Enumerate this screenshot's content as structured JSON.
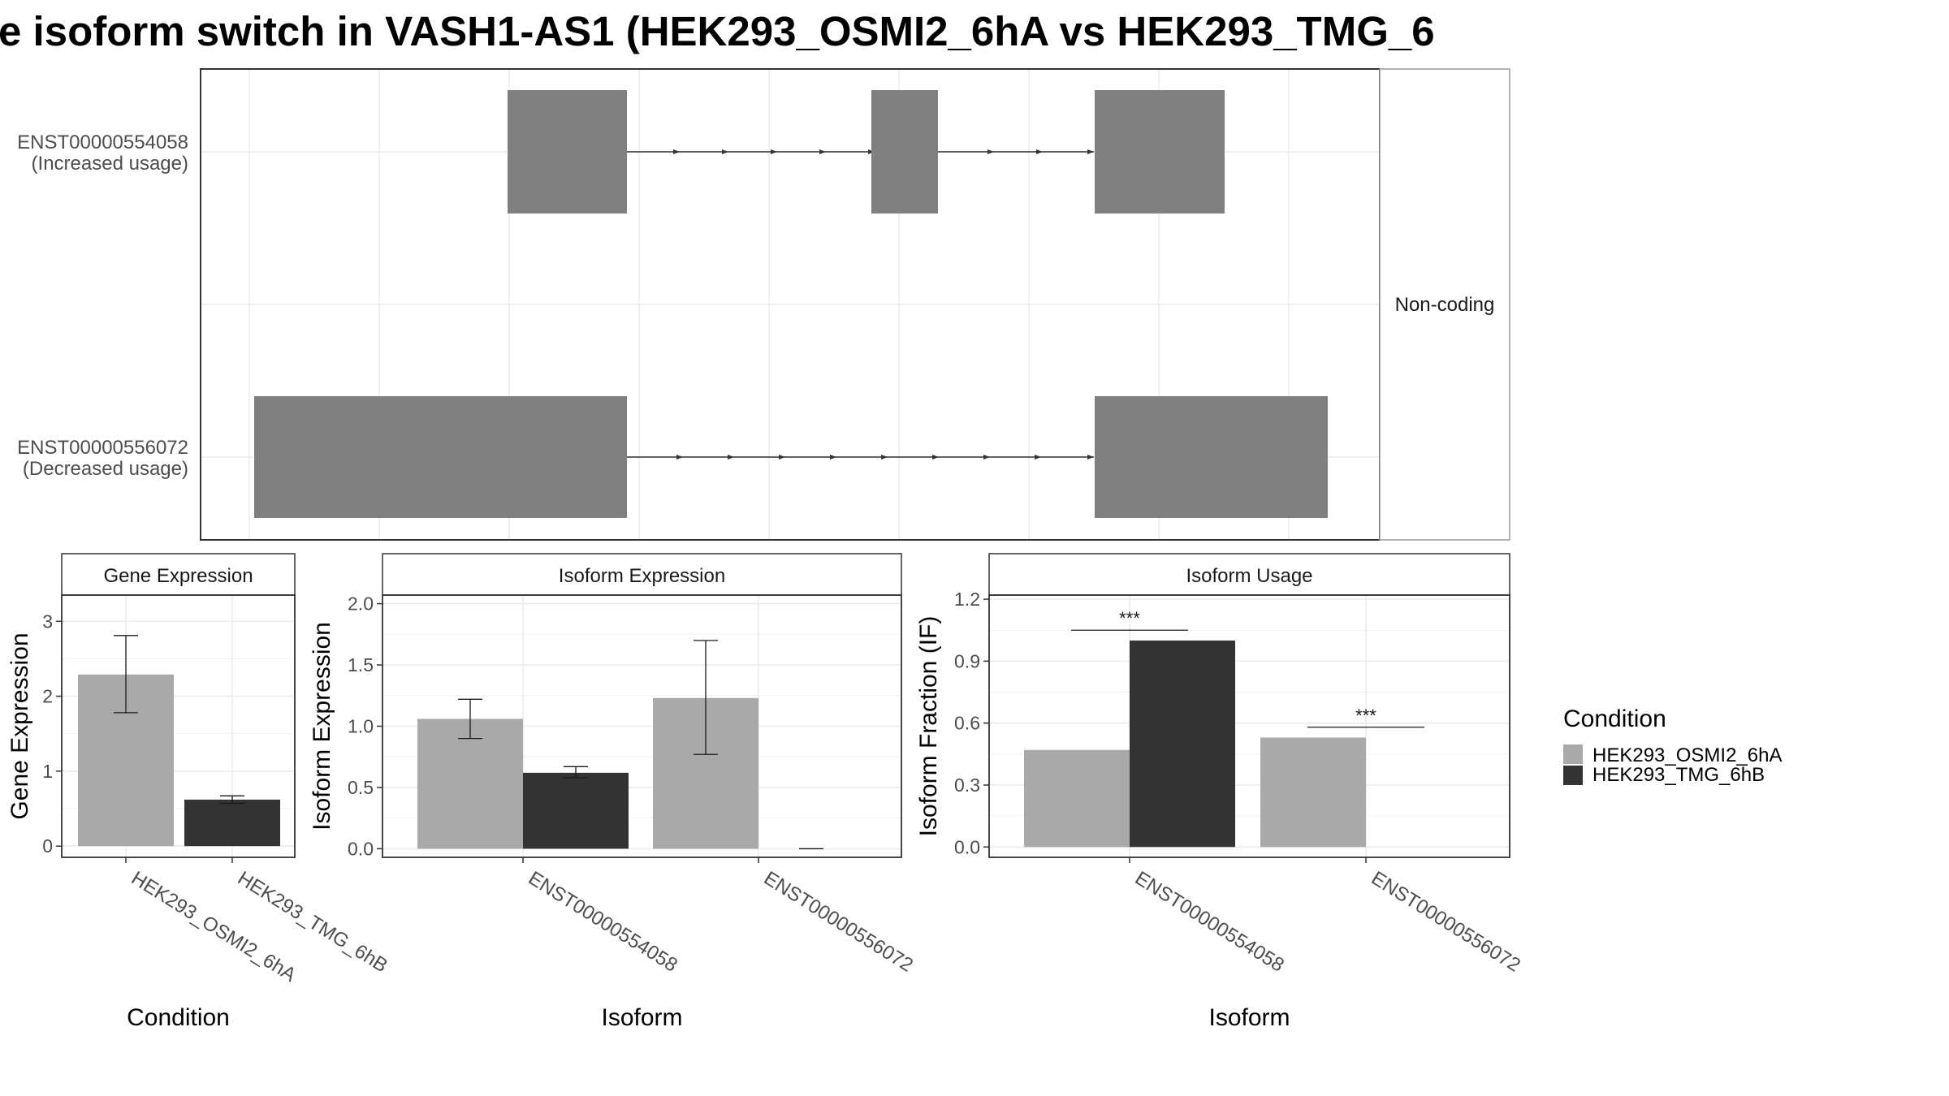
{
  "title": "e isoform switch in VASH1-AS1 (HEK293_OSMI2_6hA vs HEK293_TMG_6",
  "colors": {
    "cond1": "#a9a9a9",
    "cond2": "#333333",
    "exon": "#808080",
    "grid": "#ebebeb",
    "border": "#333333"
  },
  "structure": {
    "facet_label": "Non-coding",
    "isoforms": [
      {
        "id": "ENST00000554058",
        "note": "(Increased usage)"
      },
      {
        "id": "ENST00000556072",
        "note": "(Decreased usage)"
      }
    ]
  },
  "chart_data": [
    {
      "type": "bar",
      "title": "Gene Expression",
      "xlabel": "Condition",
      "ylabel": "Gene Expression",
      "categories": [
        "HEK293_OSMI2_6hA",
        "HEK293_TMG_6hB"
      ],
      "values": [
        2.29,
        0.62
      ],
      "errors": [
        [
          1.78,
          2.81
        ],
        [
          0.57,
          0.67
        ]
      ],
      "ylim": [
        -0.15,
        3.35
      ],
      "yticks": [
        "0",
        "1",
        "2",
        "3"
      ]
    },
    {
      "type": "bar",
      "title": "Isoform Expression",
      "xlabel": "Isoform",
      "ylabel": "Isoform Expression",
      "categories": [
        "ENST00000554058",
        "ENST00000556072"
      ],
      "series": [
        {
          "name": "HEK293_OSMI2_6hA",
          "values": [
            1.06,
            1.23
          ],
          "errors": [
            [
              0.9,
              1.22
            ],
            [
              0.77,
              1.7
            ]
          ]
        },
        {
          "name": "HEK293_TMG_6hB",
          "values": [
            0.62,
            0.0
          ],
          "errors": [
            [
              0.58,
              0.67
            ],
            [
              0.0,
              0.0
            ]
          ]
        }
      ],
      "ylim": [
        -0.07,
        2.07
      ],
      "yticks": [
        "0.0",
        "0.5",
        "1.0",
        "1.5",
        "2.0"
      ]
    },
    {
      "type": "bar",
      "title": "Isoform Usage",
      "xlabel": "Isoform",
      "ylabel": "Isoform Fraction (IF)",
      "categories": [
        "ENST00000554058",
        "ENST00000556072"
      ],
      "series": [
        {
          "name": "HEK293_OSMI2_6hA",
          "values": [
            0.47,
            0.53
          ]
        },
        {
          "name": "HEK293_TMG_6hB",
          "values": [
            1.0,
            0.0
          ]
        }
      ],
      "significance": [
        "***",
        "***"
      ],
      "ylim": [
        -0.05,
        1.22
      ],
      "yticks": [
        "0.0",
        "0.3",
        "0.6",
        "0.9",
        "1.2"
      ]
    }
  ],
  "legend": {
    "title": "Condition",
    "items": [
      "HEK293_OSMI2_6hA",
      "HEK293_TMG_6hB"
    ]
  }
}
